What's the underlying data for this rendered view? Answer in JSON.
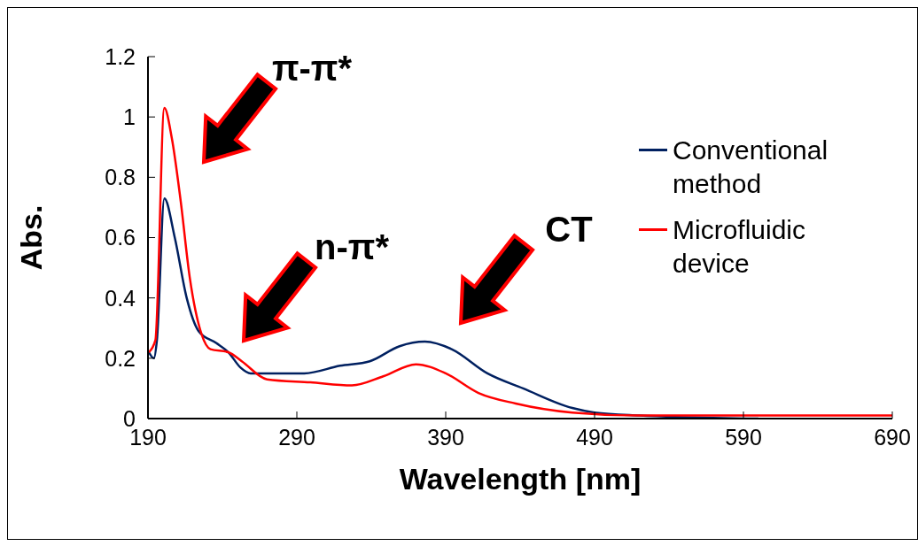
{
  "chart_data": {
    "type": "line",
    "xlabel": "Wavelength [nm]",
    "ylabel": "Abs.",
    "xlim": [
      190,
      690
    ],
    "xticks": [
      190,
      290,
      390,
      490,
      590,
      690
    ],
    "ylim": [
      0,
      1.2
    ],
    "yticks": [
      0,
      0.2,
      0.4,
      0.6,
      0.8,
      1,
      1.2
    ],
    "grid": false,
    "legend": "right",
    "series": [
      {
        "name": "Conventional method",
        "color": "#002060",
        "x": [
          190.6,
          194,
          196,
          201,
          208,
          216,
          224,
          236,
          244,
          252,
          259,
          277,
          295,
          319,
          339,
          359,
          376,
          394,
          418,
          442,
          475,
          490,
          520,
          600
        ],
        "values": [
          0.22,
          0.2,
          0.26,
          0.73,
          0.6,
          0.4,
          0.29,
          0.25,
          0.22,
          0.17,
          0.15,
          0.15,
          0.15,
          0.175,
          0.19,
          0.24,
          0.255,
          0.23,
          0.15,
          0.1,
          0.035,
          0.02,
          0.01,
          0.0
        ]
      },
      {
        "name": "Microfluidic device",
        "color": "#ff0000",
        "x": [
          190.6,
          195,
          201,
          206,
          212,
          218,
          226,
          232,
          244,
          253,
          270,
          299,
          327,
          348,
          370,
          390,
          412,
          437,
          475,
          520,
          600,
          690
        ],
        "values": [
          0.22,
          0.26,
          1.03,
          0.93,
          0.72,
          0.47,
          0.28,
          0.23,
          0.22,
          0.19,
          0.13,
          0.12,
          0.11,
          0.14,
          0.18,
          0.15,
          0.085,
          0.05,
          0.02,
          0.01,
          0.01,
          0.01
        ]
      }
    ],
    "annotations": [
      "π-π*",
      "n-π*",
      "CT"
    ]
  }
}
